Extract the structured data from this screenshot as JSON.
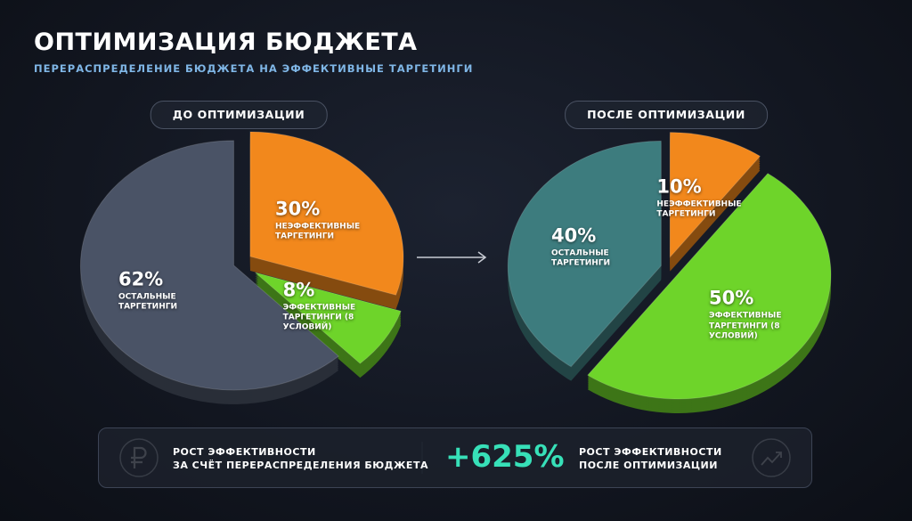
{
  "header": {
    "title": "ОПТИМИЗАЦИЯ БЮДЖЕТА",
    "subtitle": "ПЕРЕРАСПРЕДЕЛЕНИЕ БЮДЖЕТА НА ЭФФЕКТИВНЫЕ ТАРГЕТИНГИ"
  },
  "chart_data": [
    {
      "type": "pie",
      "title": "ДО ОПТИМИЗАЦИИ",
      "categories": [
        "НЕЭФФЕКТИВНЫЕ ТАРГЕТИНГИ",
        "ЭФФЕКТИВНЫЕ ТАРГЕТИНГИ (8 УСЛОВИЙ)",
        "ОСТАЛЬНЫЕ ТАРГЕТИНГИ"
      ],
      "values": [
        30,
        8,
        62
      ],
      "value_labels": [
        "30%",
        "8%",
        "62%"
      ],
      "colors": [
        "#f2881c",
        "#6ed42a",
        "#4a5366"
      ]
    },
    {
      "type": "pie",
      "title": "ПОСЛЕ ОПТИМИЗАЦИИ",
      "categories": [
        "НЕЭФФЕКТИВНЫЕ ТАРГЕТИНГИ",
        "ЭФФЕКТИВНЫЕ ТАРГЕТИНГИ (8 УСЛОВИЙ)",
        "ОСТАЛЬНЫЕ ТАРГЕТИНГИ"
      ],
      "values": [
        10,
        50,
        40
      ],
      "value_labels": [
        "10%",
        "50%",
        "40%"
      ],
      "colors": [
        "#f2881c",
        "#6ed42a",
        "#3d7c7e"
      ]
    }
  ],
  "footer": {
    "left_text": [
      "РОСТ ЭФФЕКТИВНОСТИ",
      "ЗА СЧЁТ ПЕРЕРАСПРЕДЕЛЕНИЯ БЮДЖЕТА"
    ],
    "highlight": "+625%",
    "right_text": [
      "РОСТ ЭФФЕКТИВНОСТИ",
      "ПОСЛЕ ОПТИМИЗАЦИИ"
    ]
  }
}
